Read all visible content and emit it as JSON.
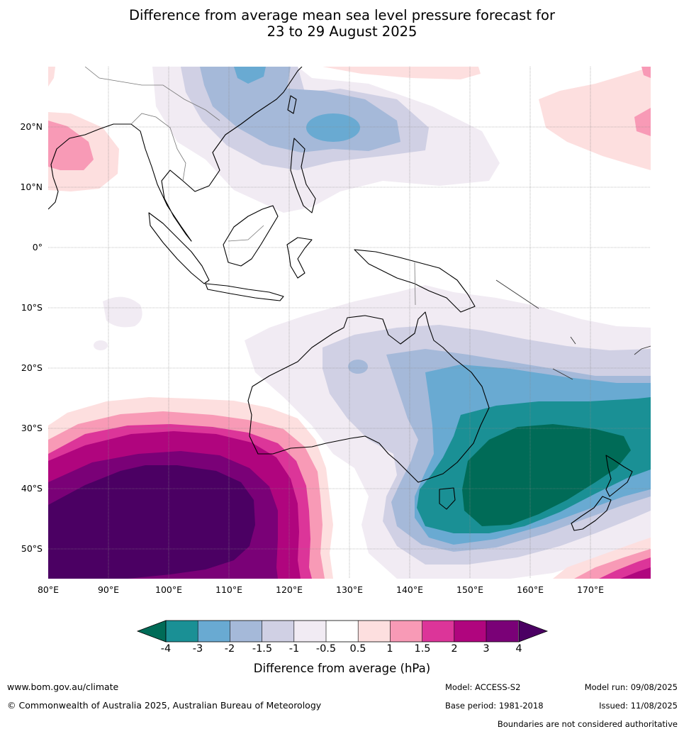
{
  "title_lines": [
    "Difference from average mean sea level pressure forecast for",
    "23 to 29 August 2025"
  ],
  "lat_labels": [
    "20°N",
    "10°N",
    "0°",
    "10°S",
    "20°S",
    "30°S",
    "40°S",
    "50°S"
  ],
  "lon_labels": [
    "80°E",
    "90°E",
    "100°E",
    "110°E",
    "120°E",
    "130°E",
    "140°E",
    "150°E",
    "160°E",
    "170°E"
  ],
  "colorbar": {
    "ticks": [
      "-4",
      "-3",
      "-2",
      "-1.5",
      "-1",
      "-0.5",
      "0.5",
      "1",
      "1.5",
      "2",
      "3",
      "4"
    ],
    "colors": [
      "#006b57",
      "#1a9095",
      "#69aad2",
      "#a5b9d9",
      "#d0d0e4",
      "#f1ebf3",
      "#ffffff",
      "#fddfdf",
      "#f89ab6",
      "#dc3599",
      "#b0057e",
      "#7a0177",
      "#4b0063"
    ],
    "label": "Difference from average (hPa)"
  },
  "footer": {
    "url": "www.bom.gov.au/climate",
    "copyright": "© Commonwealth of Australia 2025, Australian Bureau of Meteorology",
    "model": "Model: ACCESS-S2",
    "base_period": "Base period: 1981-2018",
    "model_run": "Model run: 09/08/2025",
    "issued": "Issued: 11/08/2025",
    "disclaimer": "Boundaries are not considered authoritative"
  }
}
